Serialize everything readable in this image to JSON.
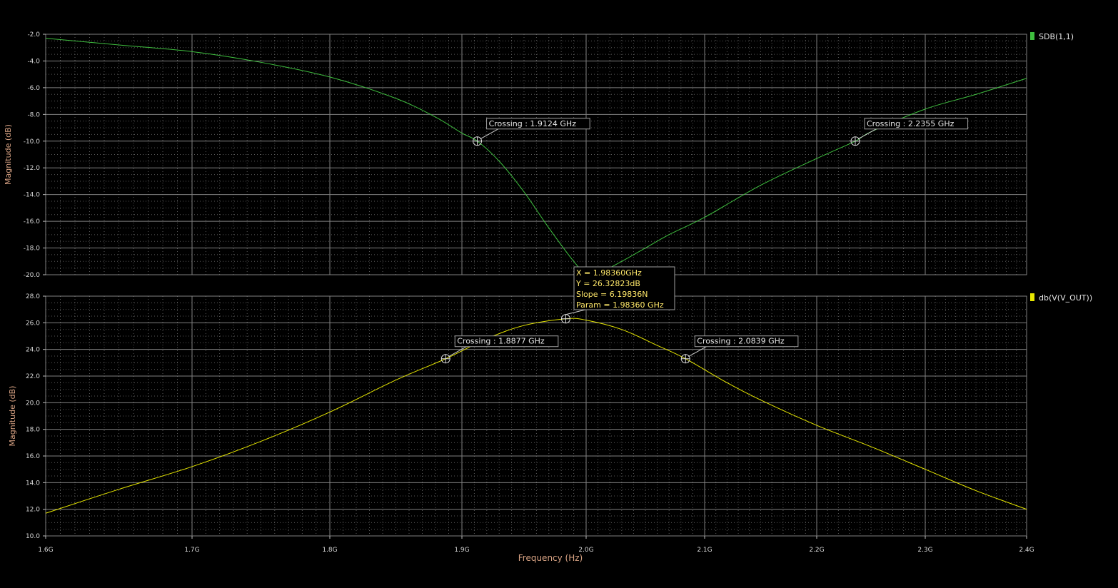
{
  "chart_data": [
    {
      "type": "line",
      "xlabel": "",
      "ylabel": "Magnitude (dB)",
      "xlim": [
        1.6,
        2.4
      ],
      "ylim": [
        -20.0,
        -2.0
      ],
      "y_ticks": [
        "-2.0",
        "-4.0",
        "-6.0",
        "-8.0",
        "-10.0",
        "-12.0",
        "-14.0",
        "-16.0",
        "-18.0",
        "-20.0"
      ],
      "grid": true,
      "legend_position": "top-right",
      "series": [
        {
          "name": "SDB(1,1)",
          "color": "#3fbf3f",
          "x": [
            1.6,
            1.65,
            1.7,
            1.75,
            1.8,
            1.85,
            1.88,
            1.9,
            1.9124,
            1.93,
            1.95,
            1.97,
            1.99,
            2.0,
            2.01,
            2.03,
            2.05,
            2.07,
            2.1,
            2.15,
            2.2,
            2.2355,
            2.25,
            2.3,
            2.35,
            2.4
          ],
          "y": [
            -2.3,
            -2.8,
            -3.3,
            -4.1,
            -5.2,
            -6.8,
            -8.2,
            -9.4,
            -10.0,
            -11.5,
            -13.8,
            -16.5,
            -19.0,
            -19.9,
            -19.9,
            -19.0,
            -18.0,
            -17.0,
            -15.7,
            -13.3,
            -11.3,
            -10.0,
            -9.3,
            -7.6,
            -6.5,
            -5.3
          ]
        }
      ],
      "annotations": [
        {
          "label": "Crossing : 1.9124 GHz",
          "x": 1.9124,
          "y": -10.0
        },
        {
          "label": "Crossing : 2.2355 GHz",
          "x": 2.2355,
          "y": -10.0
        }
      ]
    },
    {
      "type": "line",
      "xlabel": "Frequency (Hz)",
      "ylabel": "Magnitude (dB)",
      "xlim": [
        1.6,
        2.4
      ],
      "ylim": [
        10.0,
        28.0
      ],
      "x_ticks": [
        "1.6G",
        "1.7G",
        "1.8G",
        "1.9G",
        "2.0G",
        "2.1G",
        "2.2G",
        "2.3G",
        "2.4G"
      ],
      "y_ticks": [
        "28.0",
        "26.0",
        "24.0",
        "22.0",
        "20.0",
        "18.0",
        "16.0",
        "14.0",
        "12.0",
        "10.0"
      ],
      "grid": true,
      "legend_position": "top-right",
      "series": [
        {
          "name": "db(V(V_OUT))",
          "color": "#e6e600",
          "x": [
            1.6,
            1.65,
            1.7,
            1.75,
            1.8,
            1.85,
            1.8877,
            1.92,
            1.95,
            1.9836,
            2.0,
            2.03,
            2.06,
            2.0839,
            2.12,
            2.15,
            2.2,
            2.25,
            2.3,
            2.35,
            2.4
          ],
          "y": [
            11.7,
            13.5,
            15.2,
            17.1,
            19.3,
            21.7,
            23.3,
            24.8,
            25.8,
            26.3,
            26.2,
            25.5,
            24.3,
            23.3,
            21.5,
            20.2,
            18.3,
            16.7,
            15.0,
            13.4,
            12.0
          ]
        }
      ],
      "annotations": [
        {
          "label": "Crossing : 1.8877 GHz",
          "x": 1.8877,
          "y": 23.3
        },
        {
          "label": "Crossing : 2.0839 GHz",
          "x": 2.0839,
          "y": 23.3
        }
      ],
      "marker": {
        "x": 1.9836,
        "y": 26.3,
        "lines": [
          "X = 1.98360GHz",
          "Y = 26.32823dB",
          "Slope = 6.19836N",
          "Param = 1.98360 GHz"
        ]
      }
    }
  ]
}
